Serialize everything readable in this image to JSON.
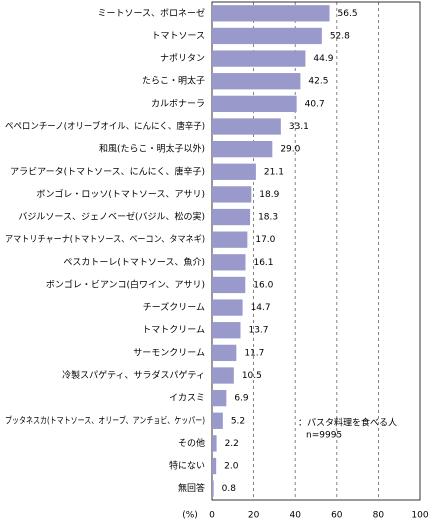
{
  "chart_data": {
    "type": "bar",
    "orientation": "horizontal",
    "categories": [
      "ミートソース、ボロネーゼ",
      "トマトソース",
      "ナポリタン",
      "たらこ・明太子",
      "カルボナーラ",
      "ペペロンチーノ(オリーブオイル、にんにく、唐辛子)",
      "和風(たらこ・明太子以外)",
      "アラビアータ(トマトソース、にんにく、唐辛子)",
      "ボンゴレ・ロッソ(トマトソース、アサリ)",
      "バジルソース、ジェノベーゼ(バジル、松の実)",
      "アマトリチャーナ(トマトソース、ベーコン、タマネギ)",
      "ペスカトーレ(トマトソース、魚介)",
      "ボンゴレ・ビアンコ(白ワイン、アサリ)",
      "チーズクリーム",
      "トマトクリーム",
      "サーモンクリーム",
      "冷製スパゲティ、サラダスパゲティ",
      "イカスミ",
      "プッタネスカ(トマトソース、オリーブ、アンチョビ、ケッパー)",
      "その他",
      "特にない",
      "無回答"
    ],
    "values": [
      56.5,
      52.8,
      44.9,
      42.5,
      40.7,
      33.1,
      29.0,
      21.1,
      18.9,
      18.3,
      17.0,
      16.1,
      16.0,
      14.7,
      13.7,
      11.7,
      10.5,
      6.9,
      5.2,
      2.2,
      2.0,
      0.8
    ],
    "value_labels": [
      "56.5",
      "52.8",
      "44.9",
      "42.5",
      "40.7",
      "33.1",
      "29.0",
      "21.1",
      "18.9",
      "18.3",
      "17.0",
      "16.1",
      "16.0",
      "14.7",
      "13.7",
      "11.7",
      "10.5",
      "6.9",
      "5.2",
      "2.2",
      "2.0",
      "0.8"
    ],
    "color": "#9999cc",
    "xlim": [
      0,
      100
    ],
    "xticks": [
      0,
      20,
      40,
      60,
      80,
      100
    ],
    "grid": true,
    "x_label": "(%)",
    "legend_note": "：パスタ料理を食べる人",
    "sample_size": "n=9995"
  }
}
